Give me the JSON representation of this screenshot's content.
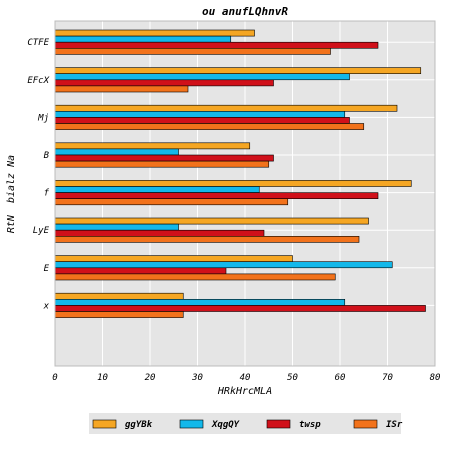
{
  "chart_data": {
    "type": "bar",
    "orientation": "horizontal",
    "title": "ou anufLQhnvR",
    "xlabel": "HRkHrcMLA",
    "ylabel": "RtN  bialz Na",
    "xlim": [
      0,
      80
    ],
    "xticks": [
      0,
      10,
      20,
      30,
      40,
      50,
      60,
      70,
      80
    ],
    "grid": true,
    "legend_position": "bottom",
    "categories": [
      "CTFE",
      "EFcX",
      "Mj",
      "B",
      "f",
      "LyE",
      "E",
      "x"
    ],
    "series": [
      {
        "name": "ggYBk",
        "color": "#f5a623",
        "values": [
          42,
          77,
          72,
          41,
          75,
          66,
          50,
          27
        ]
      },
      {
        "name": "XqgQY",
        "color": "#13b8ea",
        "values": [
          37,
          62,
          61,
          26,
          43,
          26,
          71,
          61
        ]
      },
      {
        "name": "twsp",
        "color": "#d0101a",
        "values": [
          68,
          46,
          62,
          46,
          68,
          44,
          36,
          78
        ]
      },
      {
        "name": "ISr",
        "color": "#f2721b",
        "values": [
          58,
          28,
          65,
          45,
          49,
          64,
          59,
          27
        ]
      }
    ]
  }
}
